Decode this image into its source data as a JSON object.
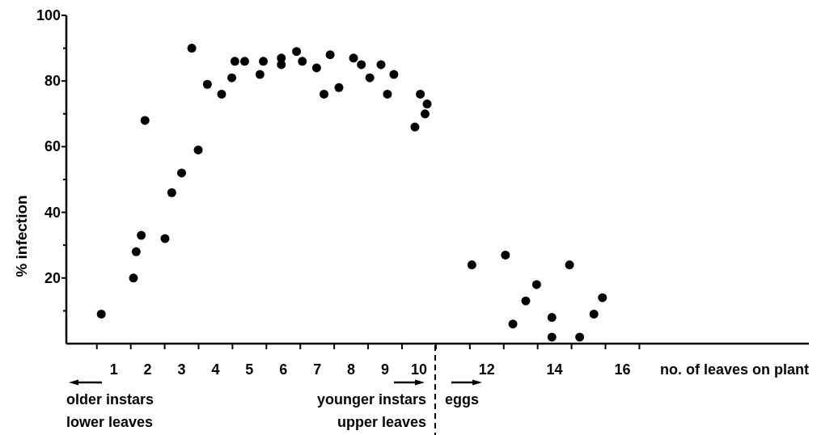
{
  "chart_data": {
    "type": "scatter",
    "xlabel": "no. of leaves on plant",
    "ylabel": "% infection",
    "annotations": [
      "older instars\nlower leaves",
      "younger instars\nupper leaves",
      "eggs"
    ],
    "x": [
      0.63,
      1.58,
      1.66,
      1.81,
      1.92,
      2.51,
      2.71,
      3.0,
      3.3,
      3.49,
      3.76,
      4.18,
      4.48,
      4.57,
      4.86,
      5.31,
      5.41,
      5.94,
      5.94,
      6.39,
      6.56,
      6.98,
      7.2,
      7.38,
      7.64,
      8.07,
      8.3,
      8.55,
      8.88,
      9.07,
      9.26,
      9.88,
      10.04,
      10.18,
      10.24,
      11.56,
      12.55,
      12.77,
      13.15,
      13.47,
      13.92,
      13.92,
      14.44,
      14.74,
      15.16,
      15.41
    ],
    "values": [
      9,
      20,
      28,
      33,
      68,
      32,
      46,
      52,
      90,
      59,
      79,
      76,
      81,
      86,
      86,
      82,
      86,
      87,
      85,
      89,
      86,
      84,
      76,
      88,
      78,
      87,
      85,
      81,
      85,
      76,
      82,
      66,
      76,
      70,
      73,
      24,
      27,
      6,
      13,
      18,
      8,
      2,
      24,
      2,
      9,
      14
    ],
    "color": "#000000",
    "marker": "circle",
    "xlim": [
      -0.4,
      21.5
    ],
    "xticks": [
      {
        "value": 0.5,
        "label": null
      },
      1,
      {
        "value": 1.5,
        "label": null
      },
      2,
      {
        "value": 2.5,
        "label": null
      },
      3,
      {
        "value": 3.5,
        "label": null
      },
      4,
      {
        "value": 4.5,
        "label": null
      },
      5,
      {
        "value": 5.5,
        "label": null
      },
      6,
      {
        "value": 6.5,
        "label": null
      },
      7,
      {
        "value": 7.5,
        "label": null
      },
      8,
      {
        "value": 8.5,
        "label": null
      },
      9,
      {
        "value": 9.5,
        "label": null
      },
      10,
      {
        "value": 10.5,
        "label": null
      },
      {
        "value": 11.5,
        "label": null
      },
      12,
      {
        "value": 12.5,
        "label": null
      },
      {
        "value": 13.5,
        "label": null
      },
      14,
      {
        "value": 14.5,
        "label": null
      },
      {
        "value": 15.5,
        "label": null
      },
      16,
      {
        "value": 16.5,
        "label": null
      }
    ],
    "ylim": [
      0,
      100
    ],
    "yticks": [
      {
        "value": 10,
        "label": null
      },
      20,
      {
        "value": 30,
        "label": null
      },
      40,
      {
        "value": 50,
        "label": null
      },
      60,
      {
        "value": 70,
        "label": null
      },
      80,
      {
        "value": 90,
        "label": null
      },
      100
    ]
  }
}
